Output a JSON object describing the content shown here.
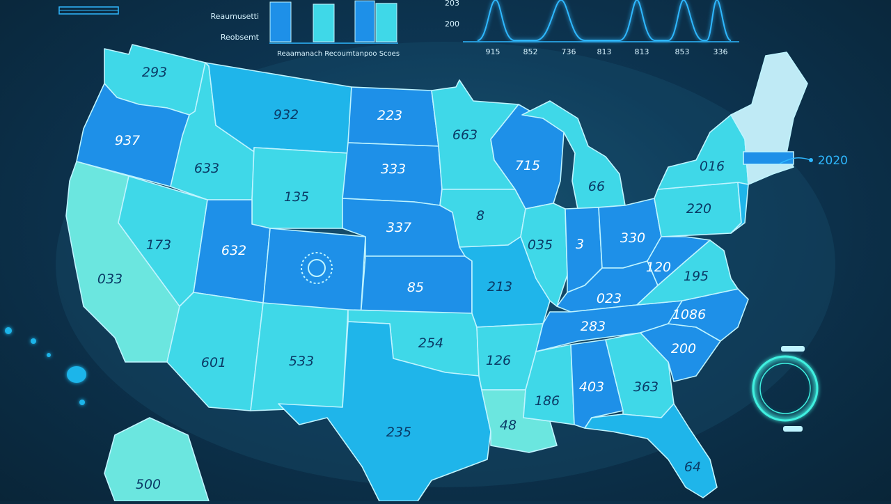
{
  "colors": {
    "background": "#0d3552",
    "state_dark": "#1e90e8",
    "state_mid": "#1fb5ea",
    "state_light": "#3fd8e8",
    "state_pale": "#6be6df",
    "border": "#bff4ff",
    "label_dark": "#0a3a66",
    "chart_stroke": "#2fb8ff"
  },
  "legend": {
    "line1": "Reaumusetti",
    "line2": "Reobsemt"
  },
  "bar_chart": {
    "caption": "Reaamanach Recoumtanpoo Scoes",
    "bars": [
      0.95,
      0.9,
      0.98,
      0.92
    ]
  },
  "line_chart": {
    "y_ticks": [
      "203",
      "200"
    ],
    "x_ticks": [
      "915",
      "852",
      "736",
      "813",
      "813",
      "853",
      "336"
    ]
  },
  "annotation_right": "2020",
  "states": [
    {
      "id": "WA",
      "label": "293"
    },
    {
      "id": "OR",
      "label": "937"
    },
    {
      "id": "CA",
      "label": "033"
    },
    {
      "id": "ID",
      "label": "633"
    },
    {
      "id": "NV",
      "label": "173"
    },
    {
      "id": "MT",
      "label": "932"
    },
    {
      "id": "WY",
      "label": "135"
    },
    {
      "id": "UT",
      "label": "632"
    },
    {
      "id": "AZ",
      "label": "601"
    },
    {
      "id": "CO",
      "label": ""
    },
    {
      "id": "NM",
      "label": "533"
    },
    {
      "id": "ND",
      "label": "223"
    },
    {
      "id": "SD",
      "label": "333"
    },
    {
      "id": "NE",
      "label": "337"
    },
    {
      "id": "KS",
      "label": "85"
    },
    {
      "id": "OK",
      "label": "254"
    },
    {
      "id": "TX",
      "label": "235"
    },
    {
      "id": "MN",
      "label": "663"
    },
    {
      "id": "IA",
      "label": "8"
    },
    {
      "id": "MO",
      "label": "213"
    },
    {
      "id": "AR",
      "label": "126"
    },
    {
      "id": "LA",
      "label": "48"
    },
    {
      "id": "WI",
      "label": "715"
    },
    {
      "id": "IL",
      "label": "035"
    },
    {
      "id": "MI",
      "label": "66"
    },
    {
      "id": "IN",
      "label": "3"
    },
    {
      "id": "OH",
      "label": "330"
    },
    {
      "id": "KY",
      "label": "023"
    },
    {
      "id": "TN",
      "label": "283"
    },
    {
      "id": "MS",
      "label": "186"
    },
    {
      "id": "AL",
      "label": "403"
    },
    {
      "id": "GA",
      "label": "363"
    },
    {
      "id": "FL",
      "label": "64"
    },
    {
      "id": "SC",
      "label": "200"
    },
    {
      "id": "NC",
      "label": "1086"
    },
    {
      "id": "VA",
      "label": "195"
    },
    {
      "id": "WV",
      "label": "120"
    },
    {
      "id": "PA",
      "label": "220"
    },
    {
      "id": "NY",
      "label": "016"
    },
    {
      "id": "NE_REGION",
      "label": ""
    },
    {
      "id": "AK",
      "label": "500"
    }
  ]
}
